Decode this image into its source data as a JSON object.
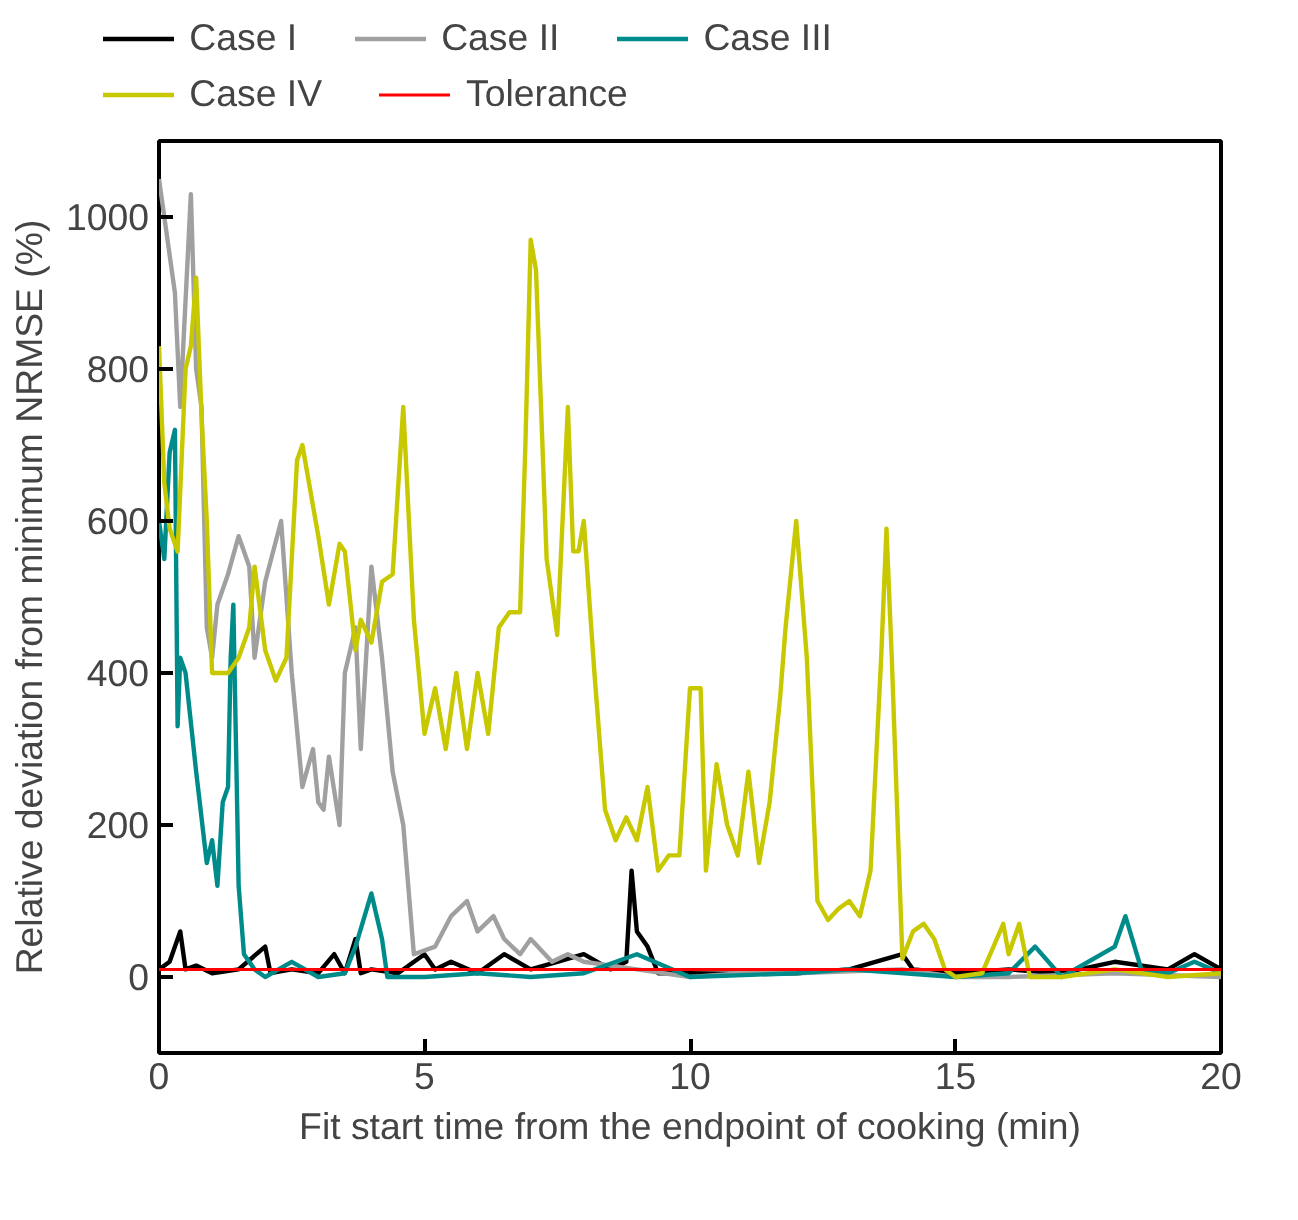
{
  "chart_data": {
    "type": "line",
    "xlabel": "Fit start time from the endpoint of cooking (min)",
    "ylabel": "Relative deviation from minimum NRMSE (%)",
    "xlim": [
      0,
      20
    ],
    "xticks": [
      0,
      5,
      10,
      15,
      20
    ],
    "ylim": [
      -100,
      1100
    ],
    "yticks": [
      0,
      200,
      400,
      600,
      800,
      1000
    ],
    "grid": false,
    "legend": "top",
    "line_style": "solid",
    "marker": "none",
    "series": [
      {
        "name": "Case I",
        "color": "#000000",
        "x": [
          0,
          0.2,
          0.4,
          0.5,
          0.7,
          1.0,
          1.5,
          2.0,
          2.1,
          2.5,
          3.0,
          3.3,
          3.5,
          3.7,
          3.8,
          4.0,
          4.5,
          5.0,
          5.2,
          5.5,
          6.0,
          6.5,
          7.0,
          7.5,
          8.0,
          8.5,
          8.8,
          8.9,
          9.0,
          9.2,
          9.4,
          10,
          11,
          12,
          13,
          14,
          14.2,
          15,
          16,
          17,
          18,
          19,
          19.5,
          20
        ],
        "values": [
          10,
          20,
          60,
          10,
          15,
          5,
          10,
          40,
          5,
          10,
          5,
          30,
          5,
          50,
          5,
          10,
          5,
          30,
          10,
          20,
          5,
          30,
          10,
          20,
          30,
          10,
          20,
          140,
          60,
          40,
          5,
          5,
          4,
          5,
          10,
          30,
          10,
          5,
          10,
          5,
          20,
          10,
          30,
          10
        ]
      },
      {
        "name": "Case II",
        "color": "#a0a0a0",
        "x": [
          0,
          0.1,
          0.3,
          0.4,
          0.6,
          0.7,
          0.8,
          0.9,
          1.0,
          1.1,
          1.3,
          1.5,
          1.7,
          1.8,
          2.0,
          2.3,
          2.5,
          2.7,
          2.9,
          3.0,
          3.1,
          3.2,
          3.4,
          3.5,
          3.7,
          3.8,
          4.0,
          4.2,
          4.4,
          4.6,
          4.8,
          5.2,
          5.5,
          5.8,
          6.0,
          6.3,
          6.5,
          6.8,
          7.0,
          7.4,
          7.7,
          8,
          9,
          10,
          11,
          12,
          14,
          15,
          16,
          18,
          20
        ],
        "values": [
          1050,
          1000,
          900,
          750,
          1030,
          800,
          750,
          460,
          420,
          490,
          530,
          580,
          540,
          420,
          520,
          600,
          400,
          250,
          300,
          230,
          220,
          290,
          200,
          400,
          460,
          300,
          540,
          420,
          270,
          200,
          30,
          40,
          80,
          100,
          60,
          80,
          50,
          30,
          50,
          20,
          30,
          20,
          10,
          0,
          5,
          5,
          10,
          0,
          0,
          5,
          0
        ]
      },
      {
        "name": "Case III",
        "color": "#008b8b",
        "x": [
          0,
          0.1,
          0.2,
          0.3,
          0.35,
          0.4,
          0.5,
          0.7,
          0.9,
          1.0,
          1.1,
          1.2,
          1.3,
          1.35,
          1.4,
          1.5,
          1.6,
          1.8,
          2.0,
          2.5,
          3.0,
          3.5,
          3.7,
          4.0,
          4.2,
          4.3,
          5,
          6,
          7,
          8,
          9,
          10,
          12,
          13,
          15,
          16,
          16.5,
          17,
          18,
          18.2,
          18.5,
          19,
          19.5,
          20
        ],
        "values": [
          600,
          550,
          690,
          720,
          330,
          420,
          400,
          270,
          150,
          180,
          120,
          230,
          250,
          420,
          490,
          120,
          30,
          10,
          0,
          20,
          0,
          5,
          40,
          110,
          50,
          0,
          0,
          5,
          0,
          5,
          30,
          0,
          5,
          10,
          0,
          5,
          40,
          0,
          40,
          80,
          10,
          5,
          20,
          5
        ]
      },
      {
        "name": "Case IV",
        "color": "#c8c800",
        "x": [
          0,
          0.1,
          0.2,
          0.35,
          0.5,
          0.6,
          0.7,
          0.8,
          0.9,
          1.0,
          1.3,
          1.5,
          1.7,
          1.8,
          2.0,
          2.2,
          2.4,
          2.6,
          2.7,
          3.0,
          3.2,
          3.4,
          3.5,
          3.7,
          3.8,
          4.0,
          4.2,
          4.4,
          4.6,
          4.8,
          5.0,
          5.2,
          5.4,
          5.6,
          5.8,
          6.0,
          6.2,
          6.4,
          6.6,
          6.8,
          6.9,
          7.0,
          7.1,
          7.3,
          7.5,
          7.7,
          7.8,
          7.9,
          8.0,
          8.2,
          8.4,
          8.6,
          8.8,
          9.0,
          9.2,
          9.4,
          9.6,
          9.8,
          10.0,
          10.2,
          10.3,
          10.5,
          10.7,
          10.9,
          11.1,
          11.3,
          11.5,
          11.7,
          11.8,
          12.0,
          12.2,
          12.4,
          12.6,
          12.8,
          13.0,
          13.2,
          13.4,
          13.6,
          13.7,
          13.8,
          14.0,
          14.2,
          14.4,
          14.6,
          14.8,
          15,
          15.5,
          15.9,
          16.0,
          16.2,
          16.4,
          17,
          18,
          19,
          20
        ],
        "values": [
          830,
          650,
          590,
          560,
          800,
          830,
          920,
          740,
          600,
          400,
          400,
          420,
          460,
          540,
          430,
          390,
          420,
          680,
          700,
          580,
          490,
          570,
          560,
          430,
          470,
          440,
          520,
          530,
          750,
          470,
          320,
          380,
          300,
          400,
          300,
          400,
          320,
          460,
          480,
          480,
          700,
          970,
          930,
          550,
          450,
          750,
          560,
          560,
          600,
          400,
          220,
          180,
          210,
          180,
          250,
          140,
          160,
          160,
          380,
          380,
          140,
          280,
          200,
          160,
          270,
          150,
          230,
          370,
          460,
          600,
          420,
          100,
          75,
          90,
          100,
          80,
          140,
          420,
          590,
          420,
          24,
          60,
          70,
          50,
          10,
          0,
          5,
          70,
          30,
          70,
          0,
          0,
          10,
          0,
          5
        ]
      },
      {
        "name": "Tolerance",
        "color": "#ff0000",
        "x": [
          0,
          20
        ],
        "values": [
          10,
          10
        ]
      }
    ]
  }
}
